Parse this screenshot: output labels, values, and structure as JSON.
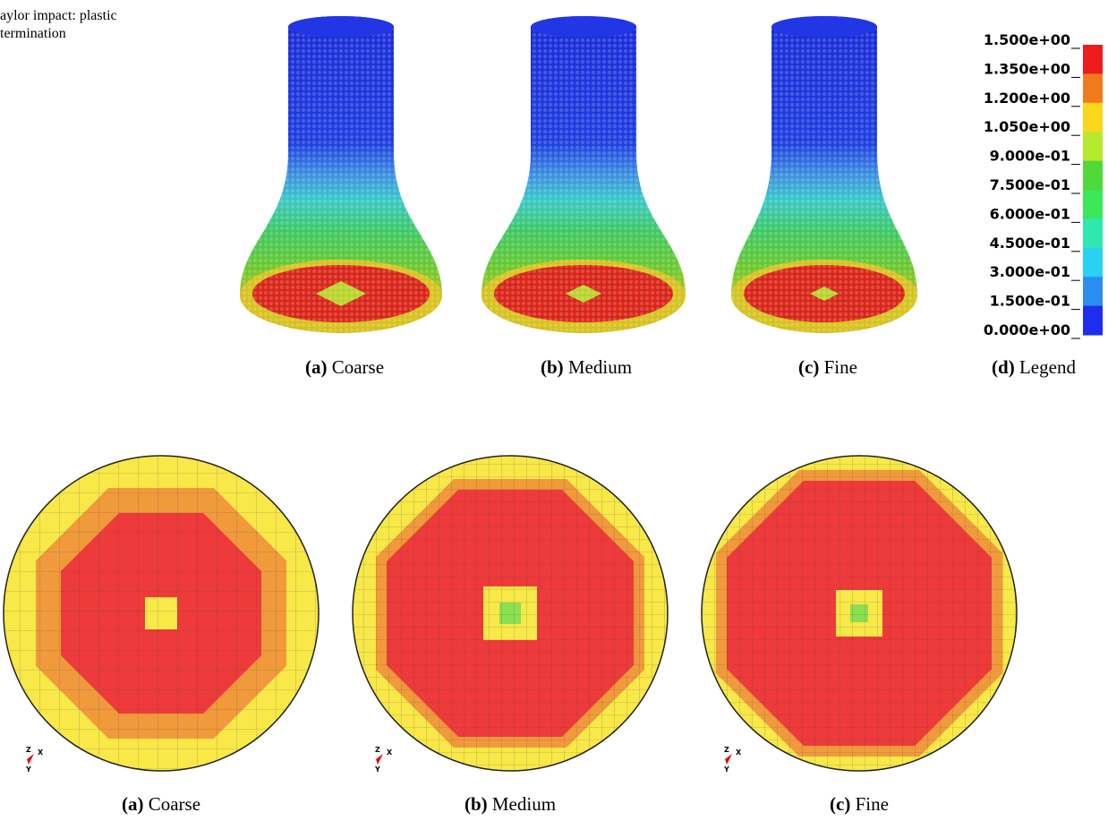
{
  "header": {
    "lines": [
      "aylor impact: plastic",
      "termination"
    ]
  },
  "legend": {
    "labels": [
      "1.500e+00",
      "1.350e+00",
      "1.200e+00",
      "1.050e+00",
      "9.000e-01",
      "7.500e-01",
      "6.000e-01",
      "4.500e-01",
      "3.000e-01",
      "1.500e-01",
      "0.000e+00"
    ],
    "colors": [
      "#ee1c1c",
      "#f27a1c",
      "#fbd71c",
      "#b6ea2c",
      "#4fd93a",
      "#3be85a",
      "#2ee8b0",
      "#29d2f2",
      "#2c8cf0",
      "#1e2df0"
    ]
  },
  "captions_top": [
    {
      "letter": "(a)",
      "label": "Coarse"
    },
    {
      "letter": "(b)",
      "label": "Medium"
    },
    {
      "letter": "(c)",
      "label": "Fine"
    },
    {
      "letter": "(d)",
      "label": "Legend"
    }
  ],
  "captions_bottom": [
    {
      "letter": "(a)",
      "label": "Coarse"
    },
    {
      "letter": "(b)",
      "label": "Medium"
    },
    {
      "letter": "(c)",
      "label": "Fine"
    }
  ],
  "axis_triad": {
    "z": "Z",
    "x": "X",
    "y": "Y"
  }
}
